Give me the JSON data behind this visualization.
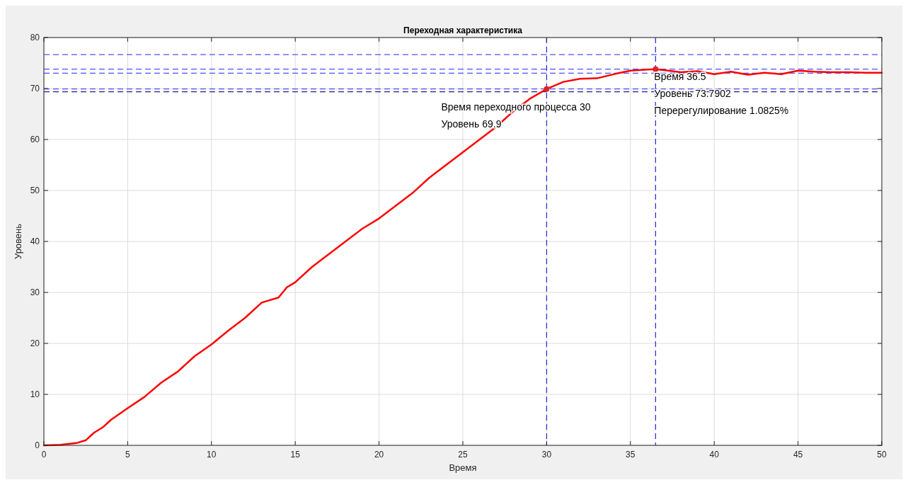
{
  "chart_data": {
    "type": "line",
    "title": "Переходная характеристика",
    "xlabel": "Время",
    "ylabel": "Уровень",
    "x": [
      0,
      1,
      2,
      2.5,
      3,
      3.5,
      4,
      5,
      6,
      7,
      8,
      9,
      10,
      11,
      12,
      13,
      14,
      14.5,
      15,
      16,
      17,
      18,
      19,
      20,
      21,
      22,
      23,
      24,
      25,
      26,
      27,
      28,
      29,
      30,
      31,
      32,
      33,
      34,
      35,
      36,
      36.5,
      37,
      38,
      39,
      40,
      41,
      42,
      43,
      44,
      45,
      46,
      47,
      48,
      49,
      50
    ],
    "series": [
      {
        "color": "#ff0000",
        "values": [
          0,
          0.1,
          0.5,
          1,
          2.5,
          3.5,
          5,
          7.3,
          9.5,
          12.3,
          14.5,
          17.5,
          19.8,
          22.5,
          25,
          28,
          29,
          31,
          32,
          35,
          37.5,
          40,
          42.5,
          44.5,
          47,
          49.5,
          52.5,
          55,
          57.5,
          60,
          62.5,
          65.5,
          68,
          69.9,
          71.3,
          71.9,
          72,
          72.8,
          73.5,
          73.7,
          73.8,
          73.6,
          73.2,
          73.4,
          72.8,
          73.3,
          72.7,
          73.1,
          72.8,
          73.5,
          73.3,
          73.2,
          73.2,
          73.1,
          73.1
        ]
      },
      {
        "type": "scatter",
        "marker": "circle",
        "color": "#e0202a",
        "x": [
          30,
          36.5
        ],
        "values": [
          69.9,
          73.8
        ]
      }
    ],
    "xlim": [
      0,
      50
    ],
    "ylim": [
      0,
      80
    ],
    "xticks": [
      0,
      5,
      10,
      15,
      20,
      25,
      30,
      35,
      40,
      45,
      50
    ],
    "yticks": [
      0,
      10,
      20,
      30,
      40,
      50,
      60,
      70,
      80
    ],
    "grid": true,
    "marker": "none",
    "line_style": "solid",
    "ref_lines": [
      {
        "axis": "y",
        "value": 76.65,
        "color": "#5050ff",
        "line_style": "dashed"
      },
      {
        "axis": "y",
        "value": 73.8,
        "color": "#5050ff",
        "line_style": "dashed"
      },
      {
        "axis": "y",
        "value": 73,
        "color": "#5050ff",
        "line_style": "dashed"
      },
      {
        "axis": "y",
        "value": 69.9,
        "color": "#5050ff",
        "line_style": "dashed"
      },
      {
        "axis": "y",
        "value": 69.35,
        "color": "#202080",
        "line_style": "dashed"
      },
      {
        "axis": "x",
        "value": 30,
        "color": "#3030e0",
        "line_style": "dashed"
      },
      {
        "axis": "x",
        "value": 36.5,
        "color": "#3030e0",
        "line_style": "dashed"
      }
    ],
    "annotations": [
      {
        "text": "Время переходного процесса 30\nУровень 69.9",
        "x": 30,
        "y": 69.9
      },
      {
        "text": "Время 36.5\nУровень 73.7902\nПеререгулирование 1.0825%",
        "x": 36.5,
        "y": 73.8
      }
    ]
  }
}
